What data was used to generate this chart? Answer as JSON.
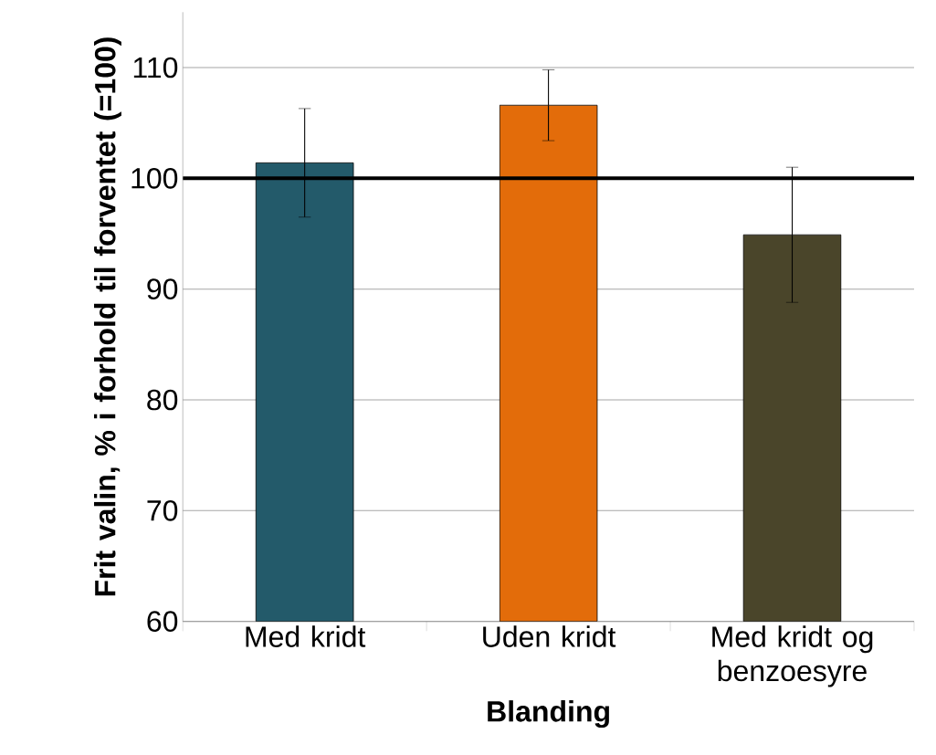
{
  "chart_data": {
    "type": "bar",
    "xlabel": "Blanding",
    "ylabel": "Frit valin, % i forhold til forventet (=100)",
    "categories": [
      "Med kridt",
      "Uden kridt",
      "Med kridt og benzoesyre"
    ],
    "values": [
      101.4,
      106.6,
      94.9
    ],
    "colors": [
      "#235a6a",
      "#e36c0a",
      "#4a452a"
    ],
    "errors": [
      4.9,
      3.2,
      6.1
    ],
    "ylim": [
      60,
      115
    ],
    "yticks": [
      60,
      70,
      80,
      90,
      100,
      110
    ],
    "grid": "y",
    "ref_lines": [
      {
        "axis": "y",
        "value": 100,
        "color": "#000000"
      }
    ]
  }
}
